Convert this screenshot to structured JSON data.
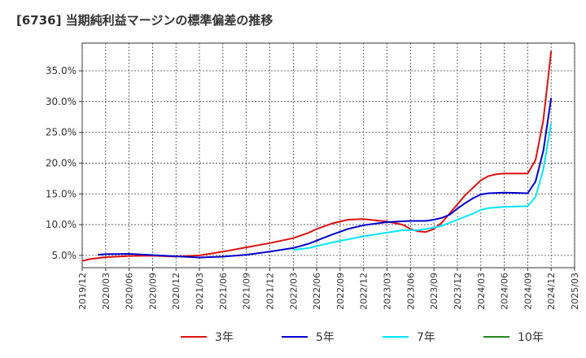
{
  "chart_data": {
    "type": "line",
    "title": "[6736]  当期純利益マージンの標準偏差の推移",
    "xlabel": "",
    "ylabel": "",
    "x_tick_labels": [
      "2019/12",
      "2020/03",
      "2020/06",
      "2020/09",
      "2020/12",
      "2021/03",
      "2021/06",
      "2021/09",
      "2021/12",
      "2022/03",
      "2022/06",
      "2022/09",
      "2022/12",
      "2023/03",
      "2023/06",
      "2023/09",
      "2023/12",
      "2024/03",
      "2024/06",
      "2024/09",
      "2024/12",
      "2025/03"
    ],
    "y_ticks": [
      5,
      10,
      15,
      20,
      25,
      30,
      35
    ],
    "y_tick_labels": [
      "5.0%",
      "10.0%",
      "15.0%",
      "20.0%",
      "25.0%",
      "30.0%",
      "35.0%"
    ],
    "ylim": [
      3.0,
      39.5
    ],
    "xlim": [
      "2019/12",
      "2025/03"
    ],
    "grid": true,
    "legend_position": "bottom",
    "series": [
      {
        "name": "3年",
        "color": "#dd1111",
        "points": [
          [
            "2019/12",
            4.1
          ],
          [
            "2020/01",
            4.4
          ],
          [
            "2020/03",
            4.7
          ],
          [
            "2020/06",
            4.9
          ],
          [
            "2020/09",
            4.95
          ],
          [
            "2020/12",
            4.8
          ],
          [
            "2021/03",
            5.0
          ],
          [
            "2021/06",
            5.6
          ],
          [
            "2021/09",
            6.3
          ],
          [
            "2021/12",
            7.0
          ],
          [
            "2022/03",
            7.8
          ],
          [
            "2022/05",
            8.7
          ],
          [
            "2022/06",
            9.3
          ],
          [
            "2022/08",
            10.2
          ],
          [
            "2022/10",
            10.8
          ],
          [
            "2022/12",
            10.9
          ],
          [
            "2023/03",
            10.5
          ],
          [
            "2023/05",
            10.0
          ],
          [
            "2023/06",
            9.3
          ],
          [
            "2023/07",
            8.9
          ],
          [
            "2023/08",
            8.8
          ],
          [
            "2023/09",
            9.3
          ],
          [
            "2023/10",
            10.3
          ],
          [
            "2023/11",
            11.8
          ],
          [
            "2023/12",
            13.3
          ],
          [
            "2024/01",
            14.8
          ],
          [
            "2024/02",
            16.0
          ],
          [
            "2024/03",
            17.2
          ],
          [
            "2024/04",
            17.9
          ],
          [
            "2024/05",
            18.2
          ],
          [
            "2024/06",
            18.3
          ],
          [
            "2024/07",
            18.3
          ],
          [
            "2024/08",
            18.3
          ],
          [
            "2024/09",
            18.3
          ],
          [
            "2024/10",
            20.5
          ],
          [
            "2024/11",
            27.0
          ],
          [
            "2024/12",
            38.2
          ]
        ]
      },
      {
        "name": "5年",
        "color": "#0000cc",
        "points": [
          [
            "2020/02",
            5.1
          ],
          [
            "2020/03",
            5.2
          ],
          [
            "2020/06",
            5.25
          ],
          [
            "2020/09",
            5.05
          ],
          [
            "2020/12",
            4.85
          ],
          [
            "2021/03",
            4.65
          ],
          [
            "2021/06",
            4.8
          ],
          [
            "2021/09",
            5.1
          ],
          [
            "2021/12",
            5.6
          ],
          [
            "2022/03",
            6.2
          ],
          [
            "2022/05",
            6.9
          ],
          [
            "2022/06",
            7.4
          ],
          [
            "2022/08",
            8.4
          ],
          [
            "2022/10",
            9.3
          ],
          [
            "2022/12",
            9.9
          ],
          [
            "2023/03",
            10.4
          ],
          [
            "2023/06",
            10.6
          ],
          [
            "2023/08",
            10.6
          ],
          [
            "2023/09",
            10.8
          ],
          [
            "2023/10",
            11.1
          ],
          [
            "2023/11",
            11.6
          ],
          [
            "2023/12",
            12.6
          ],
          [
            "2024/01",
            13.5
          ],
          [
            "2024/02",
            14.3
          ],
          [
            "2024/03",
            14.9
          ],
          [
            "2024/04",
            15.1
          ],
          [
            "2024/06",
            15.2
          ],
          [
            "2024/09",
            15.1
          ],
          [
            "2024/10",
            17.0
          ],
          [
            "2024/11",
            22.0
          ],
          [
            "2024/12",
            30.6
          ]
        ]
      },
      {
        "name": "7年",
        "color": "#00e5ff",
        "points": [
          [
            "2022/03",
            5.9
          ],
          [
            "2022/05",
            6.2
          ],
          [
            "2022/06",
            6.5
          ],
          [
            "2022/08",
            7.1
          ],
          [
            "2022/10",
            7.6
          ],
          [
            "2022/12",
            8.1
          ],
          [
            "2023/03",
            8.7
          ],
          [
            "2023/05",
            9.1
          ],
          [
            "2023/07",
            9.1
          ],
          [
            "2023/09",
            9.5
          ],
          [
            "2023/10",
            9.8
          ],
          [
            "2023/12",
            10.8
          ],
          [
            "2024/02",
            11.8
          ],
          [
            "2024/03",
            12.4
          ],
          [
            "2024/04",
            12.7
          ],
          [
            "2024/06",
            12.9
          ],
          [
            "2024/09",
            13.0
          ],
          [
            "2024/10",
            14.5
          ],
          [
            "2024/11",
            19.0
          ],
          [
            "2024/12",
            26.5
          ]
        ]
      },
      {
        "name": "10年",
        "color": "#228b22",
        "points": []
      }
    ]
  }
}
